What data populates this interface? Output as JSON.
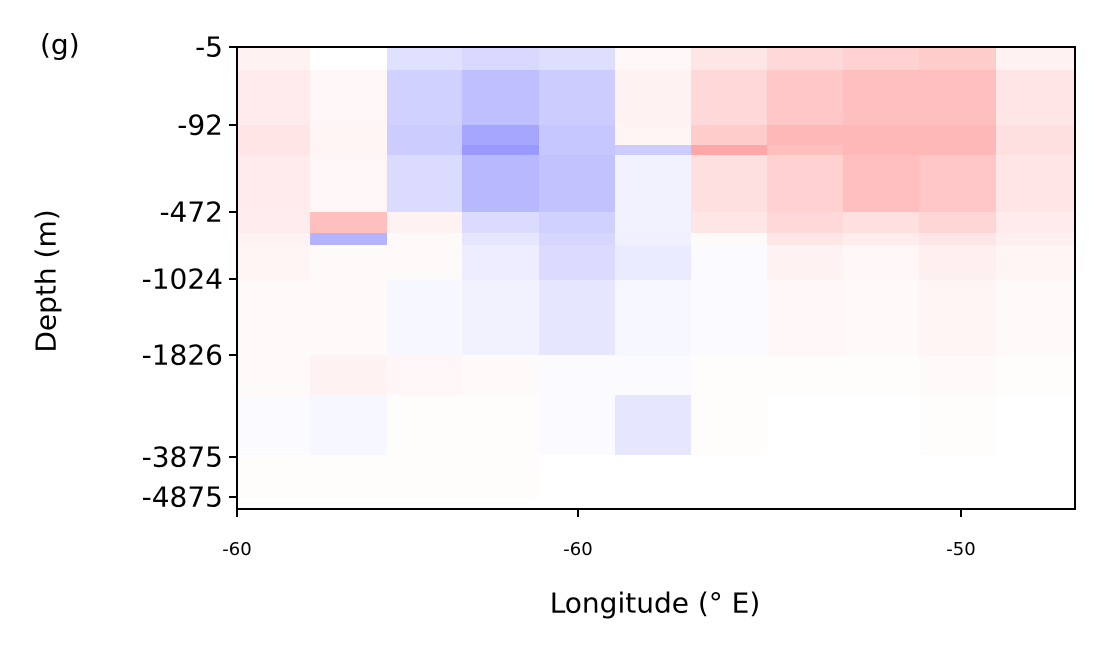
{
  "panel_label": "(g)",
  "chart_data": {
    "type": "heatmap",
    "title": "",
    "xlabel": "Longitude (° E)",
    "ylabel": "Depth (m)",
    "x_tick_labels": [
      "-60",
      "-60",
      "-50"
    ],
    "y_tick_labels": [
      "-5",
      "-92",
      "-472",
      "-1024",
      "-1826",
      "-3875",
      "-4875"
    ],
    "colormap": {
      "negative": "#0000ff",
      "zero": "#ffffff",
      "positive": "#ff0000"
    },
    "value_range": [
      -1,
      1
    ],
    "columns": 11,
    "depth_layers": [
      {
        "depth": "-5 to -30",
        "values": [
          0.05,
          0.0,
          -0.12,
          -0.15,
          -0.13,
          0.03,
          0.1,
          0.15,
          0.18,
          0.2,
          0.05
        ]
      },
      {
        "depth": "-30 to -92",
        "values": [
          0.08,
          0.03,
          -0.18,
          -0.25,
          -0.2,
          0.05,
          0.15,
          0.22,
          0.25,
          0.25,
          0.1
        ]
      },
      {
        "depth": "-92 to -140",
        "values": [
          0.1,
          0.04,
          -0.2,
          -0.35,
          -0.22,
          0.04,
          0.2,
          0.28,
          0.28,
          0.28,
          0.12
        ]
      },
      {
        "depth": "-140 to -200",
        "values": [
          0.1,
          0.04,
          -0.2,
          -0.4,
          -0.22,
          -0.2,
          0.35,
          0.25,
          0.28,
          0.28,
          0.12
        ]
      },
      {
        "depth": "-200 to -472",
        "values": [
          0.08,
          0.03,
          -0.14,
          -0.28,
          -0.24,
          -0.05,
          0.12,
          0.18,
          0.25,
          0.22,
          0.1
        ]
      },
      {
        "depth": "-472 to -550",
        "values": [
          0.07,
          0.25,
          0.05,
          -0.14,
          -0.18,
          -0.05,
          0.1,
          0.15,
          0.12,
          0.16,
          0.08
        ]
      },
      {
        "depth": "-550 to -650",
        "values": [
          0.05,
          -0.3,
          0.02,
          -0.1,
          -0.16,
          -0.06,
          0.02,
          0.1,
          0.07,
          0.1,
          0.06
        ]
      },
      {
        "depth": "-650 to -1024",
        "values": [
          0.04,
          0.02,
          0.02,
          -0.07,
          -0.14,
          -0.08,
          -0.02,
          0.05,
          0.03,
          0.06,
          0.04
        ]
      },
      {
        "depth": "-1024 to -1826",
        "values": [
          0.02,
          0.02,
          -0.03,
          -0.05,
          -0.1,
          -0.03,
          -0.02,
          0.03,
          0.02,
          0.04,
          0.02
        ]
      },
      {
        "depth": "-1826 to -2500",
        "values": [
          0.02,
          0.05,
          0.03,
          0.02,
          -0.02,
          -0.02,
          0.01,
          0.01,
          0.01,
          0.02,
          0.01
        ]
      },
      {
        "depth": "-2500 to -3875",
        "values": [
          -0.02,
          -0.03,
          0.01,
          0.01,
          -0.02,
          -0.1,
          0.01,
          0.0,
          0.0,
          0.01,
          0.0
        ]
      },
      {
        "depth": "-3875 to -4875",
        "values": [
          0.01,
          0.01,
          0.01,
          0.01,
          0.0,
          0.0,
          0.0,
          0.0,
          0.0,
          0.0,
          0.0
        ]
      }
    ]
  }
}
